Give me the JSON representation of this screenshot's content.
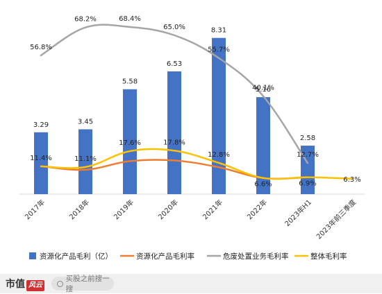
{
  "chart_data": {
    "type": "bar",
    "categories": [
      "2017年",
      "2018年",
      "2019年",
      "2020年",
      "2021年",
      "2022年",
      "2023年H1",
      "2023年前三季度"
    ],
    "bar_series": {
      "name": "资源化产品毛利（亿）",
      "values": [
        3.29,
        3.45,
        5.58,
        6.53,
        8.31,
        5.16,
        2.58,
        null
      ],
      "labels": [
        "3.29",
        "3.45",
        "5.58",
        "6.53",
        "8.31",
        "5.16",
        "2.58",
        ""
      ],
      "color": "#4472c4"
    },
    "line_series": [
      {
        "name": "资源化产品毛利率",
        "values": [
          11.4,
          10.0,
          13.5,
          13.8,
          11.0,
          6.6,
          6.9,
          null
        ],
        "labels": [
          "",
          "",
          "",
          "",
          "",
          "6.6%",
          "6.9%",
          ""
        ],
        "color": "#ed7d31"
      },
      {
        "name": "危废处置业务毛利率",
        "values": [
          56.8,
          68.2,
          68.4,
          65.0,
          55.7,
          40.1,
          12.7,
          null
        ],
        "labels": [
          "56.8%",
          "68.2%",
          "68.4%",
          "65.0%",
          "55.7%",
          "40.1%",
          "12.7%",
          ""
        ],
        "color": "#a5a5a5"
      },
      {
        "name": "整体毛利率",
        "values": [
          11.4,
          11.1,
          17.6,
          17.8,
          12.8,
          6.6,
          6.9,
          6.3
        ],
        "labels": [
          "11.4%",
          "11.1%",
          "17.6%",
          "17.8%",
          "12.8%",
          "",
          "",
          "6.3%"
        ],
        "color": "#ffc000"
      }
    ],
    "bar_ylim": [
      0,
      9.0
    ],
    "line_ylim": [
      0,
      80
    ],
    "grid": false,
    "legend_position": "bottom"
  },
  "watermark": {
    "logo_text": "市值",
    "logo_mark": "风云",
    "search_text": "买股之前搜一搜",
    "search_icon": "search-icon"
  }
}
